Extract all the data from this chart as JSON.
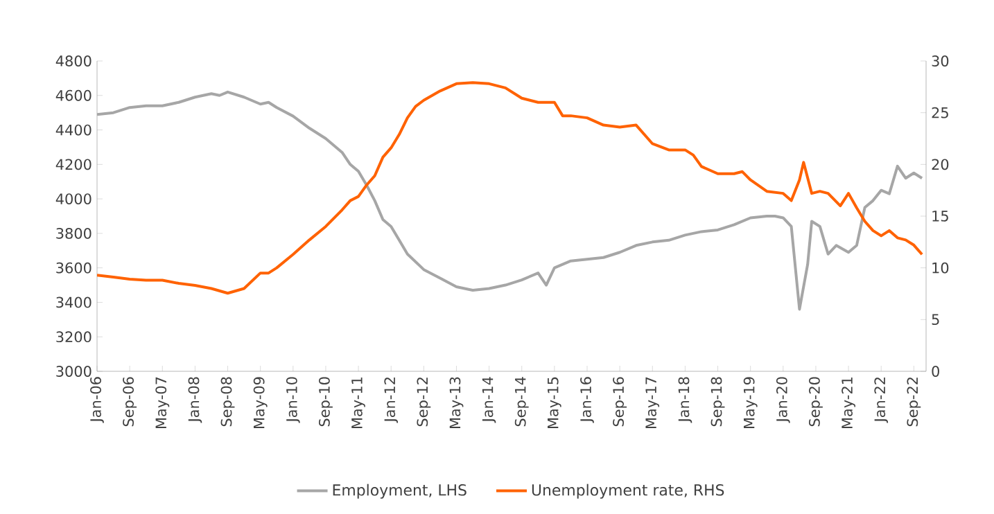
{
  "chart_data": {
    "type": "line",
    "xlim": [
      "2006-01",
      "2022-12"
    ],
    "xticks": [
      {
        "value": "2006-01",
        "label": "Jan-06"
      },
      {
        "value": "2006-09",
        "label": "Sep-06"
      },
      {
        "value": "2007-05",
        "label": "May-07"
      },
      {
        "value": "2008-01",
        "label": "Jan-08"
      },
      {
        "value": "2008-09",
        "label": "Sep-08"
      },
      {
        "value": "2009-05",
        "label": "May-09"
      },
      {
        "value": "2010-01",
        "label": "Jan-10"
      },
      {
        "value": "2010-09",
        "label": "Sep-10"
      },
      {
        "value": "2011-05",
        "label": "May-11"
      },
      {
        "value": "2012-01",
        "label": "Jan-12"
      },
      {
        "value": "2012-09",
        "label": "Sep-12"
      },
      {
        "value": "2013-05",
        "label": "May-13"
      },
      {
        "value": "2014-01",
        "label": "Jan-14"
      },
      {
        "value": "2014-09",
        "label": "Sep-14"
      },
      {
        "value": "2015-05",
        "label": "May-15"
      },
      {
        "value": "2016-01",
        "label": "Jan-16"
      },
      {
        "value": "2016-09",
        "label": "Sep-16"
      },
      {
        "value": "2017-05",
        "label": "May-17"
      },
      {
        "value": "2018-01",
        "label": "Jan-18"
      },
      {
        "value": "2018-09",
        "label": "Sep-18"
      },
      {
        "value": "2019-05",
        "label": "May-19"
      },
      {
        "value": "2020-01",
        "label": "Jan-20"
      },
      {
        "value": "2020-09",
        "label": "Sep-20"
      },
      {
        "value": "2021-05",
        "label": "May-21"
      },
      {
        "value": "2022-01",
        "label": "Jan-22"
      },
      {
        "value": "2022-09",
        "label": "Sep-22"
      }
    ],
    "ylim": [
      3000,
      4800
    ],
    "yticks": [
      3000,
      3200,
      3400,
      3600,
      3800,
      4000,
      4200,
      4400,
      4600,
      4800
    ],
    "y2lim": [
      0,
      30
    ],
    "y2ticks": [
      0,
      5,
      10,
      15,
      20,
      25,
      30
    ],
    "legend": "bottom",
    "series": [
      {
        "name": "Employment, LHS",
        "color": "#a6a6a6",
        "x": [
          "2006-01",
          "2006-05",
          "2006-09",
          "2007-01",
          "2007-05",
          "2007-09",
          "2008-01",
          "2008-05",
          "2008-07",
          "2008-09",
          "2009-01",
          "2009-05",
          "2009-07",
          "2009-09",
          "2010-01",
          "2010-05",
          "2010-09",
          "2011-01",
          "2011-03",
          "2011-05",
          "2011-07",
          "2011-09",
          "2011-11",
          "2012-01",
          "2012-03",
          "2012-05",
          "2012-09",
          "2013-01",
          "2013-05",
          "2013-09",
          "2014-01",
          "2014-05",
          "2014-09",
          "2015-01",
          "2015-03",
          "2015-05",
          "2015-09",
          "2016-01",
          "2016-05",
          "2016-09",
          "2017-01",
          "2017-05",
          "2017-09",
          "2018-01",
          "2018-05",
          "2018-09",
          "2019-01",
          "2019-05",
          "2019-09",
          "2019-11",
          "2020-01",
          "2020-03",
          "2020-05",
          "2020-07",
          "2020-08",
          "2020-10",
          "2020-12",
          "2021-02",
          "2021-05",
          "2021-07",
          "2021-09",
          "2021-11",
          "2022-01",
          "2022-03",
          "2022-05",
          "2022-07",
          "2022-09",
          "2022-11"
        ],
        "values": [
          4490,
          4500,
          4530,
          4540,
          4540,
          4560,
          4590,
          4610,
          4600,
          4620,
          4590,
          4550,
          4560,
          4530,
          4480,
          4410,
          4350,
          4270,
          4200,
          4160,
          4080,
          3990,
          3880,
          3840,
          3760,
          3680,
          3590,
          3540,
          3490,
          3470,
          3480,
          3500,
          3530,
          3570,
          3500,
          3600,
          3640,
          3650,
          3660,
          3690,
          3730,
          3750,
          3760,
          3790,
          3810,
          3820,
          3850,
          3890,
          3900,
          3900,
          3890,
          3840,
          3360,
          3620,
          3870,
          3840,
          3680,
          3730,
          3690,
          3730,
          3950,
          3990,
          4050,
          4030,
          4190,
          4120,
          4150,
          4120
        ]
      },
      {
        "name": "Unemployment rate, RHS",
        "color": "#ff6200",
        "axis": "y2",
        "x": [
          "2006-01",
          "2006-05",
          "2006-09",
          "2007-01",
          "2007-05",
          "2007-09",
          "2008-01",
          "2008-05",
          "2008-09",
          "2009-01",
          "2009-05",
          "2009-07",
          "2009-09",
          "2010-01",
          "2010-05",
          "2010-09",
          "2011-01",
          "2011-03",
          "2011-05",
          "2011-07",
          "2011-09",
          "2011-11",
          "2012-01",
          "2012-03",
          "2012-05",
          "2012-07",
          "2012-09",
          "2013-01",
          "2013-05",
          "2013-09",
          "2014-01",
          "2014-05",
          "2014-09",
          "2015-01",
          "2015-05",
          "2015-07",
          "2015-09",
          "2016-01",
          "2016-05",
          "2016-09",
          "2017-01",
          "2017-05",
          "2017-09",
          "2018-01",
          "2018-03",
          "2018-05",
          "2018-09",
          "2019-01",
          "2019-03",
          "2019-05",
          "2019-09",
          "2020-01",
          "2020-03",
          "2020-05",
          "2020-06",
          "2020-08",
          "2020-10",
          "2020-12",
          "2021-03",
          "2021-05",
          "2021-07",
          "2021-09",
          "2021-11",
          "2022-01",
          "2022-03",
          "2022-05",
          "2022-07",
          "2022-09",
          "2022-11"
        ],
        "values": [
          9.3,
          9.1,
          8.9,
          8.8,
          8.8,
          8.5,
          8.3,
          8.0,
          7.55,
          8.0,
          9.5,
          9.5,
          10.0,
          11.3,
          12.7,
          14.0,
          15.6,
          16.5,
          16.9,
          18.0,
          18.9,
          20.7,
          21.6,
          22.9,
          24.5,
          25.6,
          26.2,
          27.1,
          27.8,
          27.9,
          27.8,
          27.4,
          26.4,
          26.0,
          26.0,
          24.7,
          24.7,
          24.5,
          23.8,
          23.6,
          23.8,
          22.0,
          21.4,
          21.4,
          20.9,
          19.8,
          19.1,
          19.1,
          19.3,
          18.5,
          17.4,
          17.2,
          16.5,
          18.5,
          20.2,
          17.2,
          17.4,
          17.2,
          16.0,
          17.2,
          15.8,
          14.5,
          13.6,
          13.1,
          13.6,
          12.9,
          12.7,
          12.2,
          11.3
        ]
      }
    ]
  }
}
